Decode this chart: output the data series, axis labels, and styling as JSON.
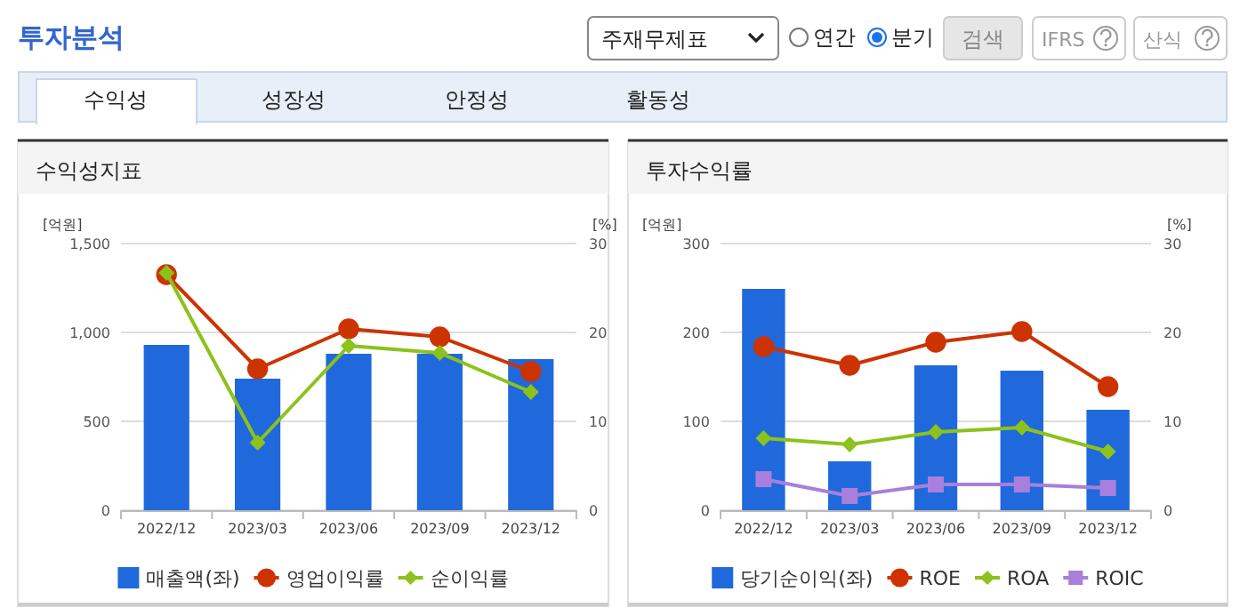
{
  "chart_data": [
    {
      "type": "other",
      "title": "투자분석",
      "annotations": [
        "주재무제표",
        "연간",
        "분기",
        "검색",
        "IFRS",
        "산식",
        "수익성",
        "성장성",
        "안정성",
        "활동성"
      ]
    },
    {
      "type": "bar",
      "title": "수익성지표",
      "ylabel": "[억원]",
      "y2label": "[%]",
      "categories": [
        "2022/12",
        "2023/03",
        "2023/06",
        "2023/09",
        "2023/12"
      ],
      "ylim": [
        0,
        1500
      ],
      "yticks": [
        0,
        500,
        {
          "value": 1000,
          "label": "1,000"
        },
        {
          "value": 1500,
          "label": "1,500"
        }
      ],
      "y2lim": [
        0,
        30
      ],
      "y2ticks": [
        0,
        10,
        20,
        30
      ],
      "grid": "y",
      "legend": "bottom",
      "series": [
        {
          "name": "매출액(좌)",
          "type": "bar",
          "color": "#1f69dc",
          "values": [
            930,
            740,
            880,
            880,
            850
          ]
        },
        {
          "name": "영업이익률",
          "type": "line",
          "axis": "y2",
          "marker": "circle",
          "color": "#cc3300",
          "values": [
            26.5,
            15.9,
            20.4,
            19.5,
            15.6
          ]
        },
        {
          "name": "순이익률",
          "type": "line",
          "axis": "y2",
          "marker": "diamond",
          "color": "#8cc21b",
          "values": [
            26.7,
            7.6,
            18.5,
            17.7,
            13.3
          ]
        }
      ]
    },
    {
      "type": "bar",
      "title": "투자수익률",
      "ylabel": "[억원]",
      "y2label": "[%]",
      "categories": [
        "2022/12",
        "2023/03",
        "2023/06",
        "2023/09",
        "2023/12"
      ],
      "ylim": [
        0,
        300
      ],
      "yticks": [
        0,
        100,
        200,
        300
      ],
      "y2lim": [
        0,
        30
      ],
      "y2ticks": [
        0,
        10,
        20,
        30
      ],
      "grid": "y",
      "legend": "bottom",
      "series": [
        {
          "name": "당기순이익(좌)",
          "type": "bar",
          "color": "#1f69dc",
          "values": [
            249,
            55,
            163,
            157,
            113
          ]
        },
        {
          "name": "ROE",
          "type": "line",
          "axis": "y2",
          "marker": "circle",
          "color": "#cc3300",
          "values": [
            18.4,
            16.3,
            18.9,
            20.1,
            13.9
          ]
        },
        {
          "name": "ROA",
          "type": "line",
          "axis": "y2",
          "marker": "diamond",
          "color": "#8cc21b",
          "values": [
            8.1,
            7.4,
            8.8,
            9.3,
            6.6
          ]
        },
        {
          "name": "ROIC",
          "type": "line",
          "axis": "y2",
          "marker": "square",
          "color": "#a87fdc",
          "values": [
            3.5,
            1.6,
            2.9,
            2.9,
            2.5
          ]
        }
      ]
    }
  ]
}
